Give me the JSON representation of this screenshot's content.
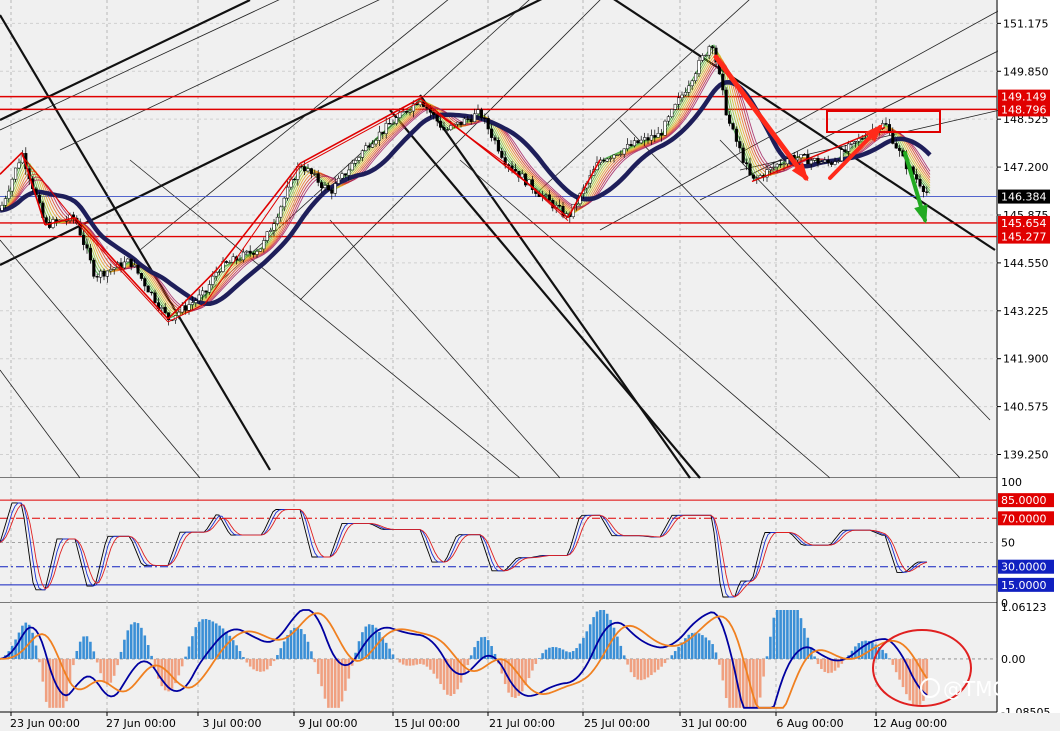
{
  "watermark": "@TMGM",
  "watermark_icon": "at-logo-icon",
  "colors": {
    "background": "#f0f0f0",
    "price_axis_bg": "#ffffff",
    "resistance": "#e00000",
    "current_price_line": "#3c50c8",
    "ema_slow": "#1e1e5a",
    "arrow_down": "#ff2a1a",
    "arrow_up": "#ff2a1a",
    "arrow_green": "#22aa22",
    "macd_hist_pos": "#3a8fd6",
    "macd_hist_neg": "#f0a080",
    "macd_line": "#0000a0",
    "signal_line": "#f08020"
  },
  "chart_data": [
    {
      "type": "candlestick",
      "title": "",
      "price_ticks": [
        "151.175",
        "149.850",
        "148.525",
        "147.200",
        "145.875",
        "144.550",
        "143.225",
        "141.900",
        "140.575",
        "139.250"
      ],
      "ylim": [
        138.6,
        151.6
      ],
      "horizontal_levels": [
        {
          "value": 149.149,
          "label": "149.149",
          "color": "#e00000"
        },
        {
          "value": 148.796,
          "label": "148.796",
          "color": "#e00000"
        },
        {
          "value": 145.654,
          "label": "145.654",
          "color": "#e00000"
        },
        {
          "value": 145.277,
          "label": "145.277",
          "color": "#e00000"
        },
        {
          "value": 146.384,
          "label": "146.384",
          "color": "#000000"
        }
      ],
      "current_price": 146.384,
      "x_labels": [
        "23 Jun 00:00",
        "27 Jun 00:00",
        "3 Jul 00:00",
        "9 Jul 00:00",
        "15 Jul 00:00",
        "21 Jul 00:00",
        "25 Jul 00:00",
        "31 Jul 00:00",
        "6 Aug 00:00",
        "12 Aug 00:00"
      ],
      "price_path": [
        [
          0,
          146.0
        ],
        [
          22,
          147.6
        ],
        [
          45,
          145.6
        ],
        [
          75,
          145.8
        ],
        [
          95,
          144.2
        ],
        [
          130,
          144.6
        ],
        [
          168,
          143.0
        ],
        [
          205,
          143.7
        ],
        [
          218,
          144.4
        ],
        [
          262,
          145.0
        ],
        [
          300,
          147.3
        ],
        [
          330,
          146.5
        ],
        [
          370,
          147.9
        ],
        [
          420,
          149.1
        ],
        [
          445,
          148.2
        ],
        [
          480,
          148.7
        ],
        [
          505,
          147.4
        ],
        [
          530,
          146.7
        ],
        [
          568,
          145.8
        ],
        [
          600,
          147.4
        ],
        [
          640,
          147.9
        ],
        [
          660,
          148.1
        ],
        [
          690,
          149.6
        ],
        [
          712,
          150.7
        ],
        [
          728,
          148.5
        ],
        [
          752,
          146.8
        ],
        [
          790,
          147.5
        ],
        [
          830,
          147.3
        ],
        [
          870,
          148.2
        ],
        [
          885,
          148.4
        ],
        [
          905,
          147.3
        ],
        [
          930,
          146.4
        ]
      ],
      "annotations": [
        "red zigzag pattern",
        "red down arrow",
        "red up arrow",
        "green down arrow",
        "red resistance box"
      ]
    },
    {
      "type": "line",
      "title": "",
      "name": "stochastic",
      "y_ticks": [
        "100",
        "50",
        "0"
      ],
      "levels": [
        {
          "value": 85,
          "label": "85.0000",
          "color": "#e00000"
        },
        {
          "value": 70,
          "label": "70.0000",
          "color": "#e00000"
        },
        {
          "value": 30,
          "label": "30.0000",
          "color": "#1020c0"
        },
        {
          "value": 15,
          "label": "15.0000",
          "color": "#1020c0"
        }
      ],
      "ylim": [
        0,
        100
      ]
    },
    {
      "type": "bar",
      "title": "",
      "name": "macd",
      "y_ticks": [
        "1.06123",
        "0.00",
        "-1.08505"
      ],
      "ylim": [
        -1.08505,
        1.06123
      ]
    }
  ]
}
